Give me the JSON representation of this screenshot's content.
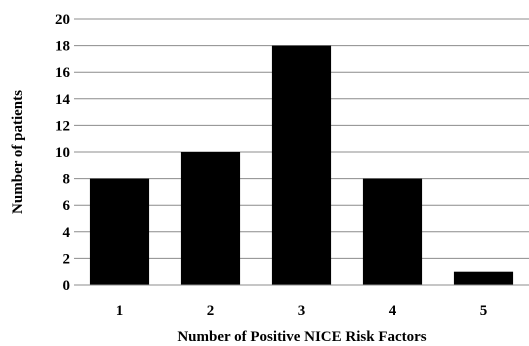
{
  "chart_data": {
    "type": "bar",
    "title": "",
    "xlabel": "Number of Positive NICE Risk Factors",
    "ylabel": "Number of patients",
    "categories": [
      "1",
      "2",
      "3",
      "4",
      "5"
    ],
    "values": [
      8,
      10,
      18,
      8,
      1
    ],
    "ylim": [
      0,
      20
    ],
    "yticks": [
      "0",
      "2",
      "4",
      "6",
      "8",
      "10",
      "12",
      "14",
      "16",
      "18",
      "20"
    ],
    "grid": true,
    "legend": "none",
    "bar_color": "#000000",
    "grid_color": "#8c8c8c"
  }
}
